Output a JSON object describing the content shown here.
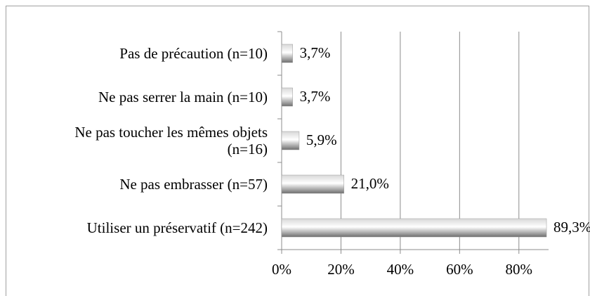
{
  "chart_data": {
    "type": "bar",
    "orientation": "horizontal",
    "categories": [
      "Pas de précaution (n=10)",
      "Ne pas serrer la main (n=10)",
      "Ne pas toucher les mêmes objets (n=16)",
      "Ne pas embrasser (n=57)",
      "Utiliser un préservatif (n=242)"
    ],
    "values": [
      3.7,
      3.7,
      5.9,
      21.0,
      89.3
    ],
    "value_labels": [
      "3,7%",
      "3,7%",
      "5,9%",
      "21,0%",
      "89,3%"
    ],
    "color": "#a0a0a0",
    "xlim": [
      0,
      90
    ],
    "xticks": [
      {
        "value": 0,
        "label": "0%"
      },
      {
        "value": 20,
        "label": "20%"
      },
      {
        "value": 40,
        "label": "40%"
      },
      {
        "value": 60,
        "label": "60%"
      },
      {
        "value": 80,
        "label": "80%"
      }
    ],
    "grid": true
  }
}
